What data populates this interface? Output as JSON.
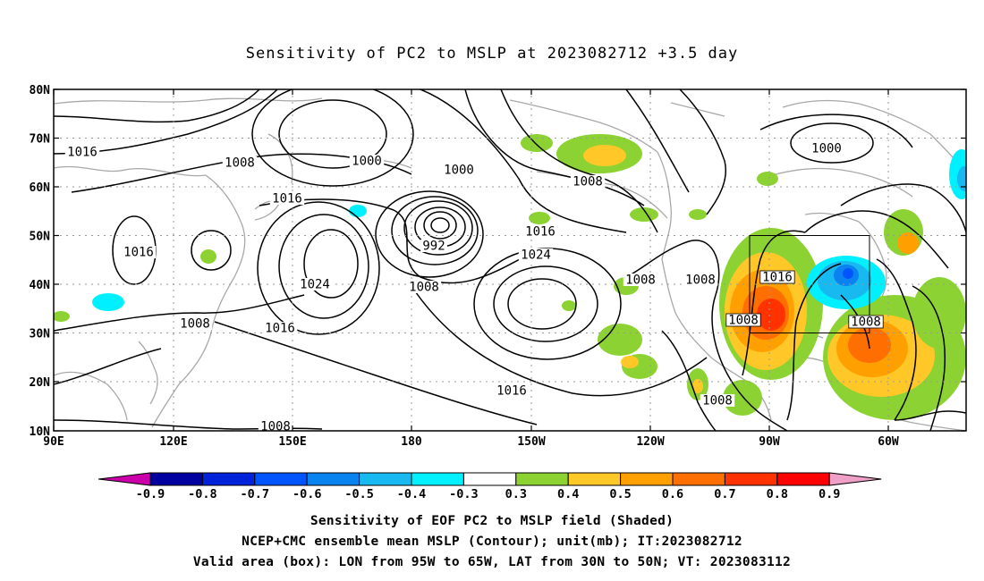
{
  "title": "Sensitivity of PC2 to MSLP at 2023082712 +3.5 day",
  "axes": {
    "lat_labels": [
      "80N",
      "70N",
      "60N",
      "50N",
      "40N",
      "30N",
      "20N",
      "10N"
    ],
    "lon_labels": [
      "90E",
      "120E",
      "150E",
      "180",
      "150W",
      "120W",
      "90W",
      "60W"
    ]
  },
  "contour_labels": [
    "1016",
    "1008",
    "1000",
    "1016",
    "1000",
    "992",
    "1008",
    "1016",
    "1024",
    "1008",
    "1016",
    "1024",
    "1016",
    "1008",
    "1008",
    "1008",
    "1000",
    "1016",
    "1008",
    "1008",
    "1008",
    "1016",
    "1008"
  ],
  "colorbar": {
    "labels": [
      "-0.9",
      "-0.8",
      "-0.7",
      "-0.6",
      "-0.5",
      "-0.4",
      "-0.3",
      "0.3",
      "0.4",
      "0.5",
      "0.6",
      "0.7",
      "0.8",
      "0.9"
    ],
    "colors": [
      "#cc00aa",
      "#0000a0",
      "#0022d8",
      "#0055ff",
      "#0a82f0",
      "#18b8f0",
      "#00f0ff",
      "#ffffff",
      "#8cd232",
      "#ffc828",
      "#ffa000",
      "#ff6e00",
      "#ff3200",
      "#ff0000",
      "#f0a0c8"
    ]
  },
  "captions": {
    "line1": "Sensitivity of EOF PC2 to MSLP field (Shaded)",
    "line2": "NCEP+CMC ensemble mean MSLP (Contour); unit(mb); IT:2023082712",
    "line3": "Valid area (box): LON from 95W to 65W, LAT from 30N to 50N; VT: 2023083112"
  }
}
